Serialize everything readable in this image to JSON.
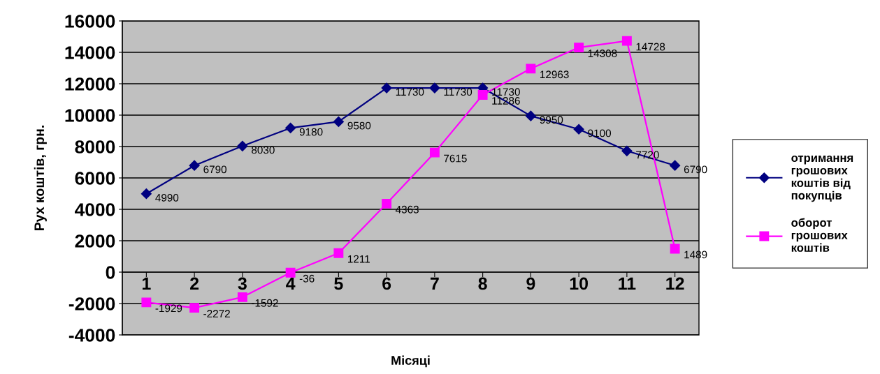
{
  "chart_data": {
    "type": "line",
    "xlabel": "Місяці",
    "ylabel": "Рух коштів, грн.",
    "categories": [
      "1",
      "2",
      "3",
      "4",
      "5",
      "6",
      "7",
      "8",
      "9",
      "10",
      "11",
      "12"
    ],
    "series": [
      {
        "name": "отримання грошових коштів від покупців",
        "color": "#000080",
        "marker": "diamond",
        "values": [
          4990,
          6790,
          8030,
          9180,
          9580,
          11730,
          11730,
          11730,
          9950,
          9100,
          7720,
          6790
        ]
      },
      {
        "name": "оборот грошових коштів",
        "color": "#ff00ff",
        "marker": "square",
        "values": [
          -1929,
          -2272,
          -1592,
          -36,
          1211,
          4363,
          7615,
          11286,
          12963,
          14308,
          14728,
          1489
        ]
      }
    ],
    "ylim": [
      -4000,
      16000
    ],
    "yticks": [
      -4000,
      -2000,
      0,
      2000,
      4000,
      6000,
      8000,
      10000,
      12000,
      14000,
      16000
    ],
    "grid": "y",
    "legend": "right",
    "data_labels": true
  }
}
